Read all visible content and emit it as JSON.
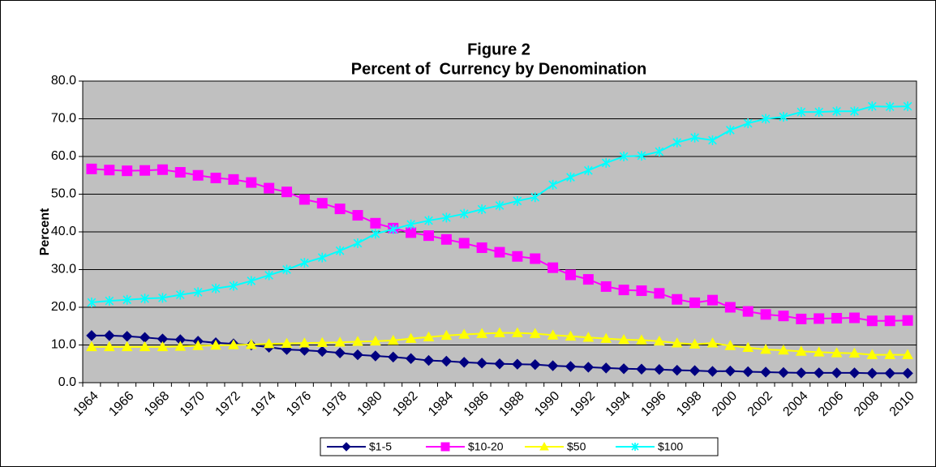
{
  "chart_data": {
    "type": "line",
    "title": "Figure 2",
    "subtitle": "Percent of  Currency by Denomination",
    "y_label": "Percent",
    "categories": [
      "1964",
      null,
      "1966",
      null,
      "1968",
      null,
      "1970",
      null,
      "1972",
      null,
      "1974",
      null,
      "1976",
      null,
      "1978",
      null,
      "1980",
      null,
      "1982",
      null,
      "1984",
      null,
      "1986",
      null,
      "1988",
      null,
      "1990",
      null,
      "1992",
      null,
      "1994",
      null,
      "1996",
      null,
      "1998",
      null,
      "2000",
      null,
      "2002",
      null,
      "2004",
      null,
      "2006",
      null,
      "2008",
      null,
      "2010"
    ],
    "ylim": [
      0,
      80
    ],
    "yticks": [
      {
        "value": 0,
        "label": "0.0"
      },
      {
        "value": 10,
        "label": "10.0"
      },
      {
        "value": 20,
        "label": "20.0"
      },
      {
        "value": 30,
        "label": "30.0"
      },
      {
        "value": 40,
        "label": "40.0"
      },
      {
        "value": 50,
        "label": "50.0"
      },
      {
        "value": 60,
        "label": "60.0"
      },
      {
        "value": 70,
        "label": "70.0"
      },
      {
        "value": 80,
        "label": "80.0"
      }
    ],
    "grid": true,
    "legend": "bottom",
    "series": [
      {
        "name": "$1-5",
        "color": "#000080",
        "marker": "diamond",
        "values": [
          12.5,
          12.5,
          12.3,
          12.0,
          11.6,
          11.4,
          11.0,
          10.6,
          10.3,
          10.0,
          9.4,
          8.8,
          8.6,
          8.3,
          7.9,
          7.4,
          7.1,
          6.8,
          6.4,
          5.9,
          5.7,
          5.4,
          5.2,
          5.0,
          4.9,
          4.8,
          4.5,
          4.3,
          4.1,
          3.9,
          3.7,
          3.6,
          3.5,
          3.3,
          3.2,
          3.0,
          3.1,
          2.9,
          2.8,
          2.7,
          2.6,
          2.6,
          2.6,
          2.6,
          2.5,
          2.5,
          2.5
        ]
      },
      {
        "name": "$10-20",
        "color": "#ff00ff",
        "marker": "square",
        "values": [
          56.7,
          56.4,
          56.2,
          56.3,
          56.5,
          55.8,
          55.0,
          54.3,
          53.9,
          53.1,
          51.6,
          50.6,
          48.6,
          47.6,
          46.1,
          44.4,
          42.3,
          41.0,
          39.8,
          39.0,
          38.0,
          37.0,
          35.8,
          34.6,
          33.5,
          32.9,
          30.5,
          28.6,
          27.4,
          25.5,
          24.6,
          24.4,
          23.7,
          22.1,
          21.2,
          21.9,
          20.0,
          18.9,
          18.1,
          17.7,
          16.9,
          17.0,
          17.1,
          17.2,
          16.4,
          16.4,
          16.5
        ]
      },
      {
        "name": "$50",
        "color": "#ffff00",
        "marker": "triangle",
        "values": [
          9.5,
          9.5,
          9.5,
          9.5,
          9.5,
          9.6,
          9.8,
          9.9,
          10.0,
          10.1,
          10.3,
          10.4,
          10.5,
          10.6,
          10.7,
          10.9,
          11.0,
          11.2,
          11.7,
          12.1,
          12.5,
          12.8,
          13.0,
          13.2,
          13.2,
          13.0,
          12.6,
          12.3,
          12.0,
          11.7,
          11.4,
          11.3,
          11.0,
          10.5,
          10.2,
          10.5,
          9.8,
          9.3,
          8.8,
          8.6,
          8.3,
          8.1,
          7.9,
          7.8,
          7.4,
          7.4,
          7.4
        ]
      },
      {
        "name": "$100",
        "color": "#00ffff",
        "marker": "star",
        "values": [
          21.3,
          21.7,
          22.0,
          22.3,
          22.5,
          23.3,
          24.0,
          25.0,
          25.7,
          27.0,
          28.5,
          30.0,
          31.8,
          33.2,
          35.0,
          37.0,
          39.5,
          40.7,
          42.0,
          43.0,
          43.8,
          44.8,
          46.0,
          47.0,
          48.2,
          49.2,
          52.5,
          54.5,
          56.3,
          58.3,
          60.0,
          60.2,
          61.3,
          63.7,
          65.0,
          64.3,
          67.0,
          68.8,
          70.0,
          70.5,
          71.8,
          71.8,
          72.0,
          72.0,
          73.3,
          73.2,
          73.3
        ]
      }
    ]
  }
}
